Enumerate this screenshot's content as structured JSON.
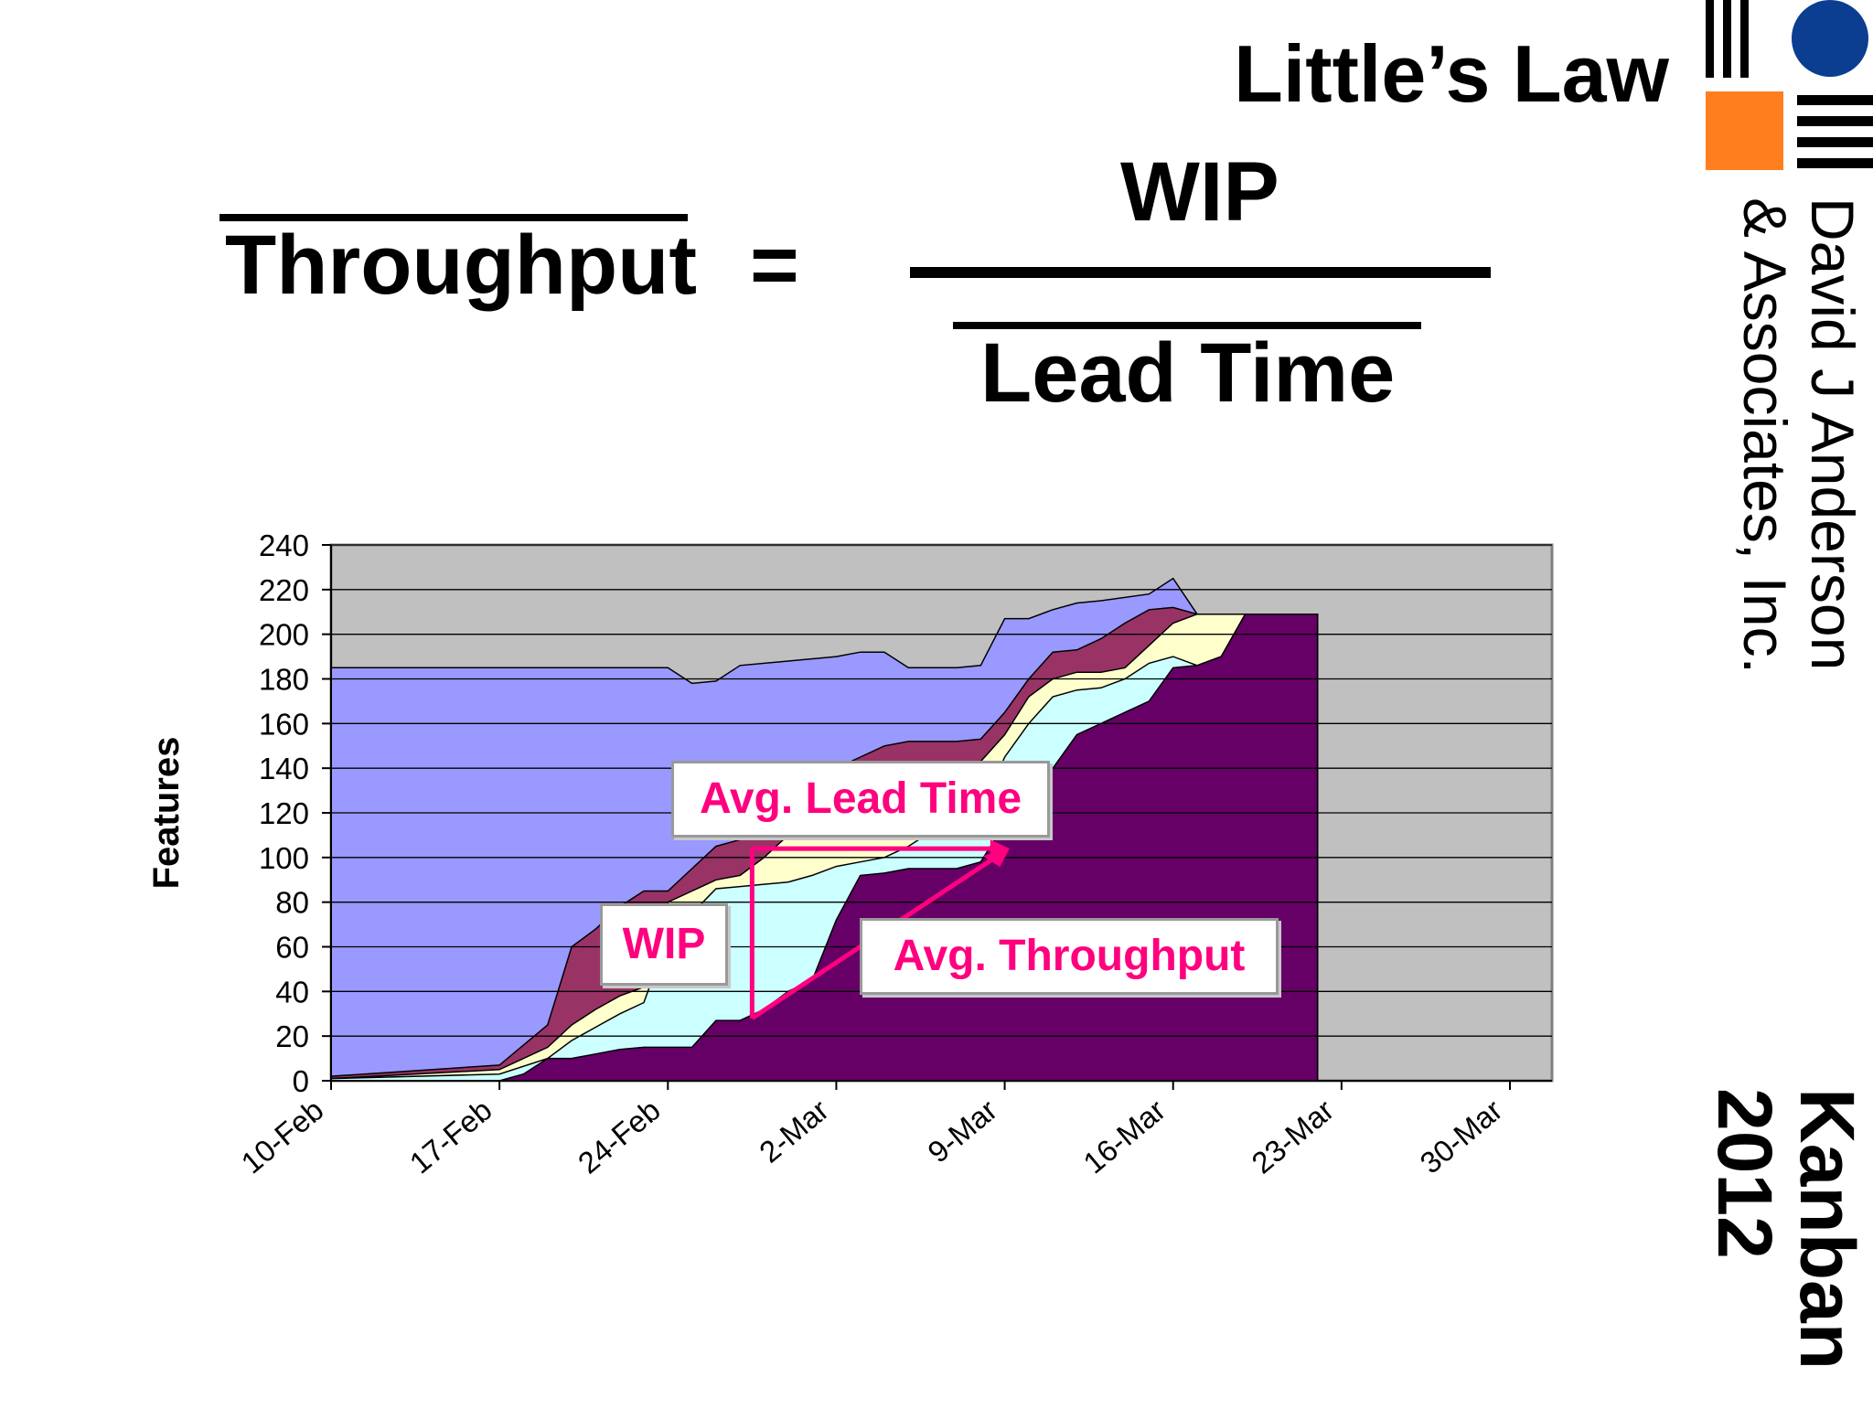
{
  "page": {
    "title": "Little’s Law",
    "company": {
      "line1": "David J Anderson",
      "line2": "& Associates, Inc."
    },
    "event": {
      "line1": "Kanban",
      "line2": "2012"
    },
    "logo": {
      "icon": "djaa-logo-icon",
      "colors": {
        "circle": "#0b3d91",
        "square": "#ff7f1f",
        "bars": "#000000"
      }
    }
  },
  "formula": {
    "lhs": "Throughput",
    "equals": "=",
    "numerator": "WIP",
    "denominator": "Lead Time"
  },
  "chart_data": {
    "type": "area",
    "ylabel": "Features",
    "xlabel": "",
    "ylim": [
      0,
      240
    ],
    "yticks": [
      0,
      20,
      40,
      60,
      80,
      100,
      120,
      140,
      160,
      180,
      200,
      220,
      240
    ],
    "xlim": [
      0,
      50
    ],
    "xticks": [
      {
        "v": 0,
        "label": "10-Feb"
      },
      {
        "v": 7,
        "label": "17-Feb"
      },
      {
        "v": 14,
        "label": "24-Feb"
      },
      {
        "v": 21,
        "label": "2-Mar"
      },
      {
        "v": 28,
        "label": "9-Mar"
      },
      {
        "v": 35,
        "label": "16-Mar"
      },
      {
        "v": 42,
        "label": "23-Mar"
      },
      {
        "v": 49,
        "label": "30-Mar"
      }
    ],
    "grid": true,
    "colors": {
      "plot_bg": "#c0c0c0",
      "grid": "#000000"
    },
    "series": [
      {
        "color": "#9999ff",
        "points": [
          [
            0,
            185
          ],
          [
            14,
            185
          ],
          [
            15,
            178
          ],
          [
            16,
            179
          ],
          [
            17,
            186
          ],
          [
            19,
            188
          ],
          [
            21,
            190
          ],
          [
            22,
            192
          ],
          [
            23,
            192
          ],
          [
            24,
            185
          ],
          [
            26,
            185
          ],
          [
            27,
            186
          ],
          [
            28,
            207
          ],
          [
            29,
            207
          ],
          [
            30,
            211
          ],
          [
            31,
            214
          ],
          [
            32,
            215
          ],
          [
            34,
            218
          ],
          [
            35,
            225
          ],
          [
            36,
            209
          ],
          [
            41,
            209
          ]
        ]
      },
      {
        "color": "#993366",
        "points": [
          [
            0,
            2
          ],
          [
            7,
            7
          ],
          [
            9,
            25
          ],
          [
            10,
            60
          ],
          [
            11,
            68
          ],
          [
            12,
            78
          ],
          [
            13,
            85
          ],
          [
            14,
            85
          ],
          [
            15,
            95
          ],
          [
            16,
            105
          ],
          [
            17,
            108
          ],
          [
            18,
            115
          ],
          [
            19,
            125
          ],
          [
            20,
            135
          ],
          [
            21,
            140
          ],
          [
            22,
            145
          ],
          [
            23,
            150
          ],
          [
            24,
            152
          ],
          [
            25,
            152
          ],
          [
            26,
            152
          ],
          [
            27,
            153
          ],
          [
            28,
            165
          ],
          [
            29,
            180
          ],
          [
            30,
            192
          ],
          [
            31,
            193
          ],
          [
            32,
            198
          ],
          [
            33,
            205
          ],
          [
            34,
            211
          ],
          [
            35,
            212
          ],
          [
            36,
            209
          ],
          [
            41,
            209
          ]
        ]
      },
      {
        "color": "#ffffcc",
        "points": [
          [
            0,
            1
          ],
          [
            7,
            5
          ],
          [
            9,
            15
          ],
          [
            10,
            25
          ],
          [
            11,
            32
          ],
          [
            12,
            38
          ],
          [
            13,
            42
          ],
          [
            14,
            80
          ],
          [
            15,
            85
          ],
          [
            16,
            90
          ],
          [
            17,
            92
          ],
          [
            18,
            100
          ],
          [
            19,
            110
          ],
          [
            20,
            120
          ],
          [
            21,
            125
          ],
          [
            22,
            130
          ],
          [
            23,
            135
          ],
          [
            24,
            138
          ],
          [
            25,
            140
          ],
          [
            26,
            140
          ],
          [
            27,
            143
          ],
          [
            28,
            155
          ],
          [
            29,
            172
          ],
          [
            30,
            180
          ],
          [
            31,
            183
          ],
          [
            32,
            183
          ],
          [
            33,
            185
          ],
          [
            34,
            195
          ],
          [
            35,
            205
          ],
          [
            36,
            209
          ],
          [
            41,
            209
          ]
        ]
      },
      {
        "color": "#ccffff",
        "points": [
          [
            0,
            1
          ],
          [
            7,
            3
          ],
          [
            9,
            10
          ],
          [
            10,
            18
          ],
          [
            11,
            24
          ],
          [
            12,
            30
          ],
          [
            13,
            35
          ],
          [
            14,
            65
          ],
          [
            15,
            75
          ],
          [
            16,
            86
          ],
          [
            17,
            87
          ],
          [
            18,
            88
          ],
          [
            19,
            89
          ],
          [
            20,
            92
          ],
          [
            21,
            96
          ],
          [
            22,
            98
          ],
          [
            23,
            100
          ],
          [
            24,
            105
          ],
          [
            25,
            112
          ],
          [
            26,
            115
          ],
          [
            27,
            120
          ],
          [
            28,
            145
          ],
          [
            29,
            160
          ],
          [
            30,
            172
          ],
          [
            31,
            175
          ],
          [
            32,
            176
          ],
          [
            33,
            180
          ],
          [
            34,
            187
          ],
          [
            35,
            190
          ],
          [
            36,
            186
          ],
          [
            37,
            190
          ],
          [
            38,
            209
          ],
          [
            41,
            209
          ]
        ]
      },
      {
        "color": "#660066",
        "points": [
          [
            0,
            0
          ],
          [
            7,
            0
          ],
          [
            8,
            3
          ],
          [
            9,
            10
          ],
          [
            10,
            10
          ],
          [
            11,
            12
          ],
          [
            12,
            14
          ],
          [
            13,
            15
          ],
          [
            14,
            15
          ],
          [
            15,
            15
          ],
          [
            16,
            27
          ],
          [
            17,
            27
          ],
          [
            18,
            32
          ],
          [
            19,
            40
          ],
          [
            20,
            45
          ],
          [
            21,
            72
          ],
          [
            22,
            92
          ],
          [
            23,
            93
          ],
          [
            24,
            95
          ],
          [
            25,
            95
          ],
          [
            26,
            95
          ],
          [
            27,
            98
          ],
          [
            28,
            115
          ],
          [
            29,
            130
          ],
          [
            30,
            140
          ],
          [
            31,
            155
          ],
          [
            32,
            160
          ],
          [
            33,
            165
          ],
          [
            34,
            170
          ],
          [
            35,
            185
          ],
          [
            36,
            186
          ],
          [
            37,
            190
          ],
          [
            38,
            209
          ],
          [
            41,
            209
          ]
        ]
      }
    ],
    "annotations": [
      {
        "text": "Avg. Lead Time",
        "color": "#ff007f"
      },
      {
        "text": "WIP",
        "color": "#ff007f"
      },
      {
        "text": "Avg. Throughput",
        "color": "#ff007f"
      }
    ]
  }
}
